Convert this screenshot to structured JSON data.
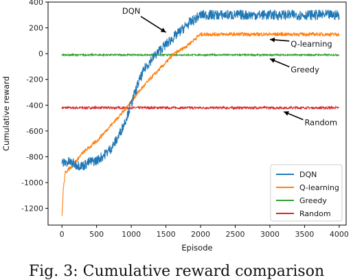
{
  "caption": "Fig. 3: Cumulative reward comparison",
  "chart_data": {
    "type": "line",
    "xlabel": "Episode",
    "ylabel": "Cumulative reward",
    "xlim": [
      -200,
      4100
    ],
    "ylim": [
      -1330,
      400
    ],
    "x_ticks": [
      0,
      500,
      1000,
      1500,
      2000,
      2500,
      3000,
      3500,
      4000
    ],
    "y_ticks": [
      400,
      200,
      0,
      -200,
      -400,
      -600,
      -800,
      -1000,
      -1200
    ],
    "grid": false,
    "legend_position": "lower-right",
    "series": [
      {
        "name": "DQN",
        "color": "#1f77b4",
        "points": [
          [
            0,
            -850
          ],
          [
            100,
            -840
          ],
          [
            200,
            -860
          ],
          [
            300,
            -870
          ],
          [
            400,
            -840
          ],
          [
            500,
            -830
          ],
          [
            600,
            -790
          ],
          [
            700,
            -740
          ],
          [
            800,
            -660
          ],
          [
            900,
            -540
          ],
          [
            1000,
            -390
          ],
          [
            1100,
            -230
          ],
          [
            1200,
            -110
          ],
          [
            1300,
            -40
          ],
          [
            1400,
            20
          ],
          [
            1500,
            70
          ],
          [
            1600,
            120
          ],
          [
            1700,
            170
          ],
          [
            1800,
            220
          ],
          [
            1900,
            260
          ],
          [
            2000,
            300
          ],
          [
            2500,
            300
          ],
          [
            3000,
            300
          ],
          [
            3500,
            300
          ],
          [
            4000,
            300
          ]
        ],
        "noise": 40
      },
      {
        "name": "Q-learning",
        "color": "#ff7f0e",
        "points": [
          [
            0,
            -1270
          ],
          [
            20,
            -1050
          ],
          [
            50,
            -920
          ],
          [
            150,
            -870
          ],
          [
            300,
            -770
          ],
          [
            500,
            -680
          ],
          [
            700,
            -560
          ],
          [
            900,
            -440
          ],
          [
            1100,
            -300
          ],
          [
            1300,
            -180
          ],
          [
            1500,
            -70
          ],
          [
            1600,
            -10
          ],
          [
            1800,
            60
          ],
          [
            2000,
            150
          ],
          [
            2500,
            150
          ],
          [
            3000,
            150
          ],
          [
            3500,
            150
          ],
          [
            4000,
            150
          ]
        ],
        "noise": 14
      },
      {
        "name": "Greedy",
        "color": "#2ca02c",
        "points": [
          [
            0,
            -10
          ],
          [
            4000,
            -10
          ]
        ],
        "noise": 6
      },
      {
        "name": "Random",
        "color": "#d62728",
        "points": [
          [
            0,
            -420
          ],
          [
            4000,
            -420
          ]
        ],
        "noise": 9
      }
    ],
    "annotations": [
      {
        "text": "DQN",
        "xy": [
          1500,
          165
        ],
        "label_at": [
          1000,
          310
        ],
        "align": "middle"
      },
      {
        "text": "Q-learning",
        "xy": [
          3000,
          110
        ],
        "label_at": [
          3300,
          55
        ],
        "align": "start"
      },
      {
        "text": "Greedy",
        "xy": [
          3000,
          -40
        ],
        "label_at": [
          3300,
          -145
        ],
        "align": "start"
      },
      {
        "text": "Random",
        "xy": [
          3200,
          -450
        ],
        "label_at": [
          3500,
          -555
        ],
        "align": "start"
      }
    ]
  }
}
